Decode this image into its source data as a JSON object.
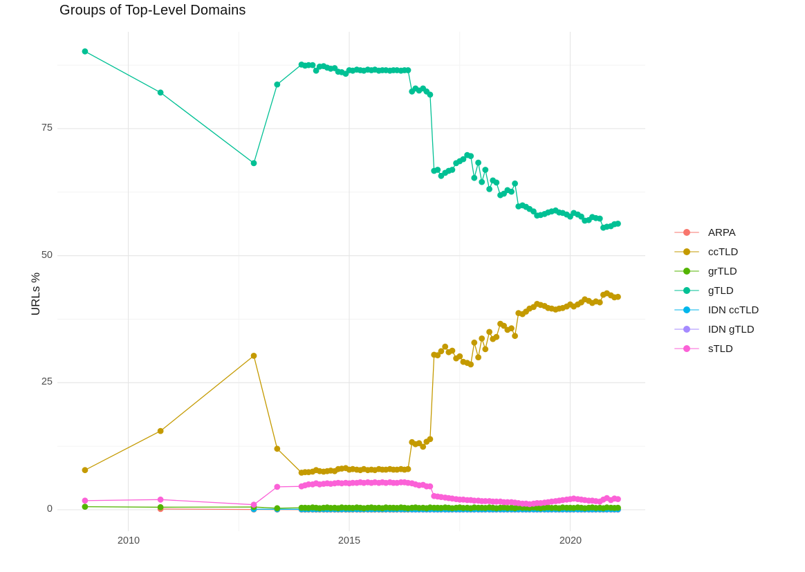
{
  "title": "Groups of Top-Level Domains",
  "axes": {
    "y_label": "URLs %",
    "x_tick_labels": [
      "2010",
      "2015",
      "2020"
    ],
    "y_tick_labels": [
      "0",
      "25",
      "50",
      "75"
    ]
  },
  "legend": {
    "items": [
      {
        "label": "ARPA",
        "color": "#F8766D"
      },
      {
        "label": "ccTLD",
        "color": "#C49A00"
      },
      {
        "label": "grTLD",
        "color": "#53B400"
      },
      {
        "label": "gTLD",
        "color": "#00C094"
      },
      {
        "label": "IDN ccTLD",
        "color": "#00B6EB"
      },
      {
        "label": "IDN gTLD",
        "color": "#A58AFF"
      },
      {
        "label": "sTLD",
        "color": "#FB61D7"
      }
    ]
  },
  "chart_data": {
    "type": "scatter",
    "title": "Groups of Top-Level Domains",
    "xlabel": "",
    "ylabel": "URLs %",
    "x_ticks": [
      2010,
      2015,
      2020
    ],
    "x_minor_ticks": [
      2012.5,
      2017.5
    ],
    "y_ticks": [
      0,
      25,
      50,
      75
    ],
    "y_minor_ticks": [
      12.5,
      37.5,
      62.5,
      87.5
    ],
    "x_range": [
      2008.4,
      2021.7
    ],
    "y_range": [
      -4,
      94
    ],
    "grid": "on",
    "legend_position": "right",
    "x_dense": [
      2013.92,
      2014.0,
      2014.08,
      2014.17,
      2014.25,
      2014.33,
      2014.42,
      2014.5,
      2014.58,
      2014.67,
      2014.75,
      2014.83,
      2014.92,
      2015.0,
      2015.08,
      2015.17,
      2015.25,
      2015.33,
      2015.42,
      2015.5,
      2015.58,
      2015.67,
      2015.75,
      2015.83,
      2015.92,
      2016.0,
      2016.08,
      2016.17,
      2016.25,
      2016.33,
      2016.42,
      2016.5,
      2016.58,
      2016.67,
      2016.75,
      2016.83,
      2016.92,
      2017.0,
      2017.08,
      2017.17,
      2017.25,
      2017.33,
      2017.42,
      2017.5,
      2017.58,
      2017.67,
      2017.75,
      2017.83,
      2017.92,
      2018.0,
      2018.08,
      2018.17,
      2018.25,
      2018.33,
      2018.42,
      2018.5,
      2018.58,
      2018.67,
      2018.75,
      2018.83,
      2018.92,
      2019.0,
      2019.08,
      2019.17,
      2019.25,
      2019.33,
      2019.42,
      2019.5,
      2019.58,
      2019.67,
      2019.75,
      2019.83,
      2019.92,
      2020.0,
      2020.08,
      2020.17,
      2020.25,
      2020.33,
      2020.42,
      2020.5,
      2020.58,
      2020.67,
      2020.75,
      2020.83,
      2020.92,
      2021.0,
      2021.08
    ],
    "series": [
      {
        "name": "ARPA",
        "color": "#F8766D",
        "early": [
          [
            2010.73,
            0.15
          ],
          [
            2012.84,
            0.05
          ],
          [
            2013.37,
            0.04
          ]
        ],
        "dense_fill": 0.03
      },
      {
        "name": "IDN gTLD",
        "color": "#A58AFF",
        "early": [],
        "dense_offset": 30,
        "dense_fill": 0.06
      },
      {
        "name": "IDN ccTLD",
        "color": "#00B6EB",
        "early": [
          [
            2012.84,
            0.12
          ],
          [
            2013.37,
            0.1
          ]
        ],
        "dense_fill": 0.1
      },
      {
        "name": "grTLD",
        "color": "#53B400",
        "early": [
          [
            2009.02,
            0.6
          ],
          [
            2010.73,
            0.5
          ],
          [
            2012.84,
            0.55
          ],
          [
            2013.37,
            0.3
          ]
        ],
        "dense": [
          0.4,
          0.4,
          0.35,
          0.45,
          0.4,
          0.3,
          0.4,
          0.45,
          0.35,
          0.4,
          0.3,
          0.45,
          0.4,
          0.4,
          0.35,
          0.45,
          0.4,
          0.3,
          0.4,
          0.45,
          0.35,
          0.4,
          0.3,
          0.45,
          0.4,
          0.4,
          0.35,
          0.45,
          0.4,
          0.3,
          0.4,
          0.45,
          0.35,
          0.4,
          0.3,
          0.45,
          0.4,
          0.4,
          0.35,
          0.45,
          0.4,
          0.3,
          0.4,
          0.45,
          0.35,
          0.4,
          0.3,
          0.45,
          0.4,
          0.4,
          0.35,
          0.45,
          0.4,
          0.3,
          0.4,
          0.45,
          0.35,
          0.4,
          0.3,
          0.45,
          0.4,
          0.4,
          0.35,
          0.45,
          0.4,
          0.3,
          0.4,
          0.45,
          0.35,
          0.4,
          0.3,
          0.45,
          0.4,
          0.4,
          0.35,
          0.45,
          0.4,
          0.3,
          0.4,
          0.45,
          0.35,
          0.4,
          0.3,
          0.45,
          0.4,
          0.35,
          0.4
        ]
      },
      {
        "name": "ccTLD",
        "color": "#C49A00",
        "early": [
          [
            2009.02,
            7.8
          ],
          [
            2010.73,
            15.5
          ],
          [
            2012.84,
            30.3
          ],
          [
            2013.37,
            12.0
          ]
        ],
        "dense": [
          7.3,
          7.4,
          7.4,
          7.5,
          7.8,
          7.6,
          7.5,
          7.6,
          7.7,
          7.6,
          8.0,
          8.1,
          8.2,
          7.9,
          8.0,
          7.9,
          7.8,
          8.0,
          7.8,
          7.9,
          7.8,
          8.0,
          7.9,
          7.9,
          8.0,
          7.9,
          7.9,
          8.0,
          7.9,
          8.0,
          13.3,
          12.9,
          13.1,
          12.4,
          13.4,
          13.9,
          30.5,
          30.4,
          31.2,
          32.1,
          31.0,
          31.3,
          29.8,
          30.2,
          29.1,
          28.9,
          28.6,
          32.9,
          30.0,
          33.7,
          31.6,
          35.0,
          33.6,
          34.0,
          36.6,
          36.2,
          35.4,
          35.7,
          34.2,
          38.7,
          38.5,
          39.0,
          39.6,
          39.9,
          40.5,
          40.3,
          40.1,
          39.7,
          39.6,
          39.4,
          39.6,
          39.7,
          40.0,
          40.4,
          40.0,
          40.4,
          40.8,
          41.4,
          41.1,
          40.7,
          41.0,
          40.8,
          42.3,
          42.6,
          42.2,
          41.8,
          41.9
        ]
      },
      {
        "name": "gTLD",
        "color": "#00C094",
        "early": [
          [
            2009.02,
            90.2
          ],
          [
            2010.73,
            82.1
          ],
          [
            2012.84,
            68.2
          ],
          [
            2013.37,
            83.7
          ]
        ],
        "dense": [
          87.6,
          87.4,
          87.5,
          87.5,
          86.4,
          87.2,
          87.3,
          87.0,
          86.8,
          86.9,
          86.2,
          86.1,
          85.8,
          86.5,
          86.4,
          86.6,
          86.5,
          86.4,
          86.6,
          86.5,
          86.6,
          86.4,
          86.5,
          86.5,
          86.4,
          86.5,
          86.5,
          86.4,
          86.5,
          86.5,
          82.3,
          82.9,
          82.5,
          82.9,
          82.3,
          81.7,
          66.7,
          66.9,
          65.7,
          66.3,
          66.7,
          66.9,
          68.2,
          68.6,
          69.0,
          69.8,
          69.6,
          65.3,
          68.3,
          64.5,
          66.9,
          63.1,
          64.8,
          64.4,
          61.9,
          62.2,
          62.9,
          62.6,
          64.2,
          59.7,
          59.9,
          59.6,
          59.2,
          58.7,
          57.9,
          58.0,
          58.2,
          58.5,
          58.7,
          58.9,
          58.5,
          58.4,
          58.1,
          57.7,
          58.4,
          58.1,
          57.7,
          56.9,
          57.0,
          57.6,
          57.4,
          57.3,
          55.5,
          55.7,
          55.8,
          56.2,
          56.3
        ]
      },
      {
        "name": "sTLD",
        "color": "#FB61D7",
        "early": [
          [
            2009.02,
            1.8
          ],
          [
            2010.73,
            2.0
          ],
          [
            2012.84,
            1.0
          ],
          [
            2013.37,
            4.5
          ]
        ],
        "dense": [
          4.6,
          4.8,
          5.0,
          5.0,
          5.2,
          5.0,
          5.1,
          5.2,
          5.1,
          5.2,
          5.3,
          5.2,
          5.3,
          5.2,
          5.3,
          5.3,
          5.4,
          5.3,
          5.4,
          5.3,
          5.4,
          5.3,
          5.4,
          5.3,
          5.4,
          5.3,
          5.3,
          5.4,
          5.4,
          5.3,
          5.2,
          5.0,
          4.8,
          4.9,
          4.6,
          4.6,
          2.7,
          2.6,
          2.5,
          2.4,
          2.3,
          2.2,
          2.1,
          2.0,
          2.0,
          1.9,
          1.9,
          1.8,
          1.8,
          1.7,
          1.7,
          1.7,
          1.6,
          1.6,
          1.6,
          1.5,
          1.5,
          1.5,
          1.4,
          1.3,
          1.2,
          1.2,
          1.1,
          1.2,
          1.3,
          1.3,
          1.4,
          1.5,
          1.6,
          1.7,
          1.8,
          1.9,
          2.0,
          2.1,
          2.2,
          2.1,
          2.0,
          1.9,
          1.8,
          1.8,
          1.7,
          1.6,
          2.0,
          2.3,
          1.9,
          2.2,
          2.1
        ]
      }
    ]
  }
}
